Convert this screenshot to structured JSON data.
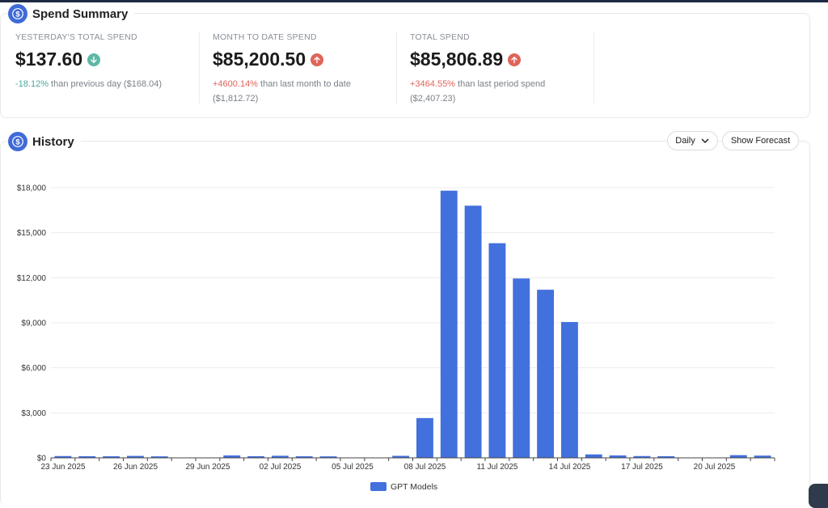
{
  "summary": {
    "title": "Spend Summary",
    "icon": "dollar-icon",
    "stats": [
      {
        "label": "YESTERDAY'S TOTAL SPEND",
        "value": "$137.60",
        "direction": "down",
        "pct": "-18.12%",
        "rest": " than previous day ($168.04)"
      },
      {
        "label": "MONTH TO DATE SPEND",
        "value": "$85,200.50",
        "direction": "up",
        "pct": "+4600.14%",
        "rest": " than last month to date ($1,812.72)"
      },
      {
        "label": "TOTAL SPEND",
        "value": "$85,806.89",
        "direction": "up",
        "pct": "+3464.55%",
        "rest": " than last period spend ($2,407.23)"
      }
    ]
  },
  "history": {
    "title": "History",
    "icon": "dollar-icon",
    "granularity_label": "Daily",
    "forecast_label": "Show Forecast"
  },
  "colors": {
    "accent": "#3f6ad8",
    "bar": "#4270dd",
    "down": "#5fb8a6",
    "up": "#e0645a"
  },
  "chart_data": {
    "type": "bar",
    "categories": [
      "23 Jun 2025",
      "24 Jun 2025",
      "25 Jun 2025",
      "26 Jun 2025",
      "27 Jun 2025",
      "28 Jun 2025",
      "29 Jun 2025",
      "30 Jun 2025",
      "01 Jul 2025",
      "02 Jul 2025",
      "03 Jul 2025",
      "04 Jul 2025",
      "05 Jul 2025",
      "06 Jul 2025",
      "07 Jul 2025",
      "08 Jul 2025",
      "09 Jul 2025",
      "10 Jul 2025",
      "11 Jul 2025",
      "12 Jul 2025",
      "13 Jul 2025",
      "14 Jul 2025",
      "15 Jul 2025",
      "16 Jul 2025",
      "17 Jul 2025",
      "18 Jul 2025",
      "19 Jul 2025",
      "20 Jul 2025",
      "21 Jul 2025",
      "22 Jul 2025"
    ],
    "x_tick_labels": [
      "23 Jun 2025",
      "26 Jun 2025",
      "29 Jun 2025",
      "02 Jul 2025",
      "05 Jul 2025",
      "08 Jul 2025",
      "11 Jul 2025",
      "14 Jul 2025",
      "17 Jul 2025",
      "20 Jul 2025"
    ],
    "series": [
      {
        "name": "GPT Models",
        "values": [
          120,
          110,
          105,
          130,
          100,
          20,
          15,
          160,
          110,
          140,
          105,
          100,
          20,
          15,
          135,
          2650,
          17800,
          16800,
          14300,
          11950,
          11200,
          9050,
          230,
          160,
          120,
          110,
          15,
          15,
          180,
          150
        ]
      }
    ],
    "y_ticks": [
      "$0",
      "$3,000",
      "$6,000",
      "$9,000",
      "$12,000",
      "$15,000",
      "$18,000"
    ],
    "ylim": [
      0,
      18000
    ],
    "grid": true,
    "legend_position": "bottom-center"
  }
}
